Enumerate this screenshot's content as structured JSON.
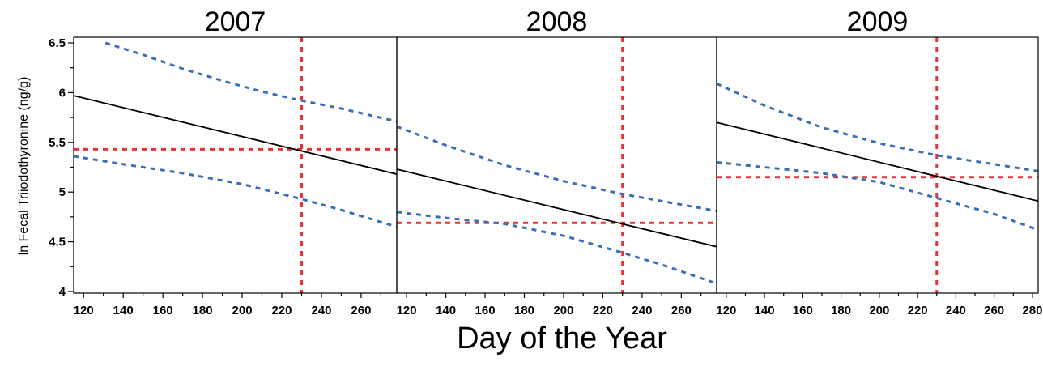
{
  "chart_data": {
    "type": "line",
    "xlabel": "Day of the Year",
    "ylabel": "ln Fecal Triiodothyronine (ng/g)",
    "ylim": [
      4,
      6.5
    ],
    "y_ticks": [
      "4",
      "4.5",
      "5",
      "5.5",
      "6",
      "6.5"
    ],
    "colors": {
      "fit": "#000000",
      "ci": "#3a6fb5",
      "reference": "#e8333a"
    },
    "panels": [
      {
        "title": "2007",
        "xlim": [
          115,
          278
        ],
        "x_ticks": [
          "120",
          "140",
          "160",
          "180",
          "200",
          "220",
          "240",
          "260"
        ],
        "x_tick_values": [
          120,
          140,
          160,
          180,
          200,
          220,
          240,
          260
        ],
        "fit": {
          "x": [
            115,
            278
          ],
          "y": [
            5.97,
            5.18
          ]
        },
        "ci_upper": {
          "x": [
            131,
            150,
            170,
            190,
            210,
            230,
            250,
            278
          ],
          "y": [
            6.5,
            6.38,
            6.24,
            6.12,
            6.01,
            5.92,
            5.84,
            5.71
          ]
        },
        "ci_lower": {
          "x": [
            115,
            140,
            170,
            200,
            230,
            250,
            278
          ],
          "y": [
            5.36,
            5.28,
            5.19,
            5.08,
            4.93,
            4.82,
            4.65
          ]
        },
        "ref_x": 230,
        "ref_y": 5.43
      },
      {
        "title": "2008",
        "xlim": [
          115,
          278
        ],
        "x_ticks": [
          "120",
          "140",
          "160",
          "180",
          "200",
          "220",
          "240",
          "260"
        ],
        "x_tick_values": [
          120,
          140,
          160,
          180,
          200,
          220,
          240,
          260
        ],
        "fit": {
          "x": [
            115,
            278
          ],
          "y": [
            5.23,
            4.45
          ]
        },
        "ci_upper": {
          "x": [
            115,
            140,
            170,
            200,
            230,
            250,
            278
          ],
          "y": [
            5.66,
            5.47,
            5.27,
            5.11,
            4.98,
            4.91,
            4.81
          ]
        },
        "ci_lower": {
          "x": [
            115,
            140,
            170,
            200,
            230,
            250,
            278
          ],
          "y": [
            4.8,
            4.74,
            4.68,
            4.56,
            4.39,
            4.27,
            4.08
          ]
        },
        "ref_x": 230,
        "ref_y": 4.69
      },
      {
        "title": "2009",
        "xlim": [
          115,
          283
        ],
        "x_ticks": [
          "120",
          "140",
          "160",
          "180",
          "200",
          "220",
          "240",
          "260",
          "280"
        ],
        "x_tick_values": [
          120,
          140,
          160,
          180,
          200,
          220,
          240,
          260,
          280
        ],
        "fit": {
          "x": [
            115,
            283
          ],
          "y": [
            5.7,
            4.91
          ]
        },
        "ci_upper": {
          "x": [
            115,
            140,
            170,
            200,
            230,
            260,
            283
          ],
          "y": [
            6.09,
            5.87,
            5.65,
            5.49,
            5.37,
            5.28,
            5.21
          ]
        },
        "ci_lower": {
          "x": [
            115,
            140,
            170,
            200,
            230,
            260,
            283
          ],
          "y": [
            5.3,
            5.25,
            5.19,
            5.1,
            4.94,
            4.78,
            4.62
          ]
        },
        "ref_x": 230,
        "ref_y": 5.15
      }
    ]
  }
}
